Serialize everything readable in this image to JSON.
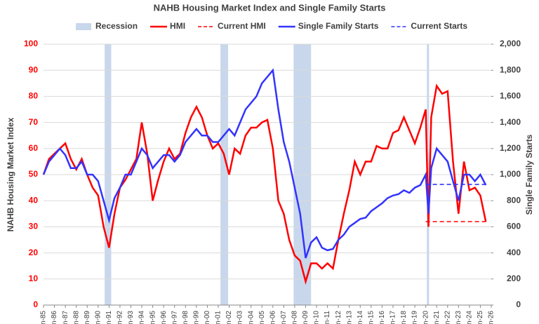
{
  "chart_data": {
    "type": "line",
    "title": "NAHB Housing Market Index and Single Family Starts",
    "ylabel": "NAHB Housing Market Index",
    "y2label": "Single Family Starts",
    "xlim": [
      1985,
      2026
    ],
    "xticks": [
      {
        "value": 1985,
        "label": "n-85"
      },
      {
        "value": 1986,
        "label": "n-86"
      },
      {
        "value": 1987,
        "label": "n-87"
      },
      {
        "value": 1988,
        "label": "n-88"
      },
      {
        "value": 1989,
        "label": "n-89"
      },
      {
        "value": 1990,
        "label": "n-90"
      },
      {
        "value": 1991,
        "label": "n-91"
      },
      {
        "value": 1992,
        "label": "n-92"
      },
      {
        "value": 1993,
        "label": "n-93"
      },
      {
        "value": 1994,
        "label": "n-94"
      },
      {
        "value": 1995,
        "label": "n-95"
      },
      {
        "value": 1996,
        "label": "n-96"
      },
      {
        "value": 1997,
        "label": "n-97"
      },
      {
        "value": 1998,
        "label": "n-98"
      },
      {
        "value": 1999,
        "label": "n-99"
      },
      {
        "value": 2000,
        "label": "n-00"
      },
      {
        "value": 2001,
        "label": "n-01"
      },
      {
        "value": 2002,
        "label": "n-02"
      },
      {
        "value": 2003,
        "label": "n-03"
      },
      {
        "value": 2004,
        "label": "n-04"
      },
      {
        "value": 2005,
        "label": "n-05"
      },
      {
        "value": 2006,
        "label": "n-06"
      },
      {
        "value": 2007,
        "label": "n-07"
      },
      {
        "value": 2008,
        "label": "n-08"
      },
      {
        "value": 2009,
        "label": "n-09"
      },
      {
        "value": 2010,
        "label": "n-10"
      },
      {
        "value": 2011,
        "label": "n-11"
      },
      {
        "value": 2012,
        "label": "n-12"
      },
      {
        "value": 2013,
        "label": "n-13"
      },
      {
        "value": 2014,
        "label": "n-14"
      },
      {
        "value": 2015,
        "label": "n-15"
      },
      {
        "value": 2016,
        "label": "n-16"
      },
      {
        "value": 2017,
        "label": "n-17"
      },
      {
        "value": 2018,
        "label": "n-18"
      },
      {
        "value": 2019,
        "label": "n-19"
      },
      {
        "value": 2020,
        "label": "n-20"
      },
      {
        "value": 2021,
        "label": "n-21"
      },
      {
        "value": 2022,
        "label": "n-22"
      },
      {
        "value": 2023,
        "label": "n-23"
      },
      {
        "value": 2024,
        "label": "n-24"
      },
      {
        "value": 2025,
        "label": "n-25"
      },
      {
        "value": 2026,
        "label": "n-26"
      }
    ],
    "ylim": [
      0,
      100
    ],
    "yticks": [
      0,
      10,
      20,
      30,
      40,
      50,
      60,
      70,
      80,
      90,
      100
    ],
    "y2lim": [
      0,
      2000
    ],
    "y2ticks": [
      0,
      200,
      400,
      600,
      800,
      {
        "value": 1000,
        "label": "1,000"
      },
      {
        "value": 1200,
        "label": "1,200"
      },
      {
        "value": 1400,
        "label": "1,400"
      },
      {
        "value": 1600,
        "label": "1,600"
      },
      {
        "value": 1800,
        "label": "1,800"
      },
      {
        "value": 2000,
        "label": "2,000"
      }
    ],
    "recession": {
      "name": "Recession",
      "color": "#c9d7ec",
      "ranges": [
        [
          1990.6,
          1991.2
        ],
        [
          2001.2,
          2001.9
        ],
        [
          2007.9,
          2009.5
        ],
        [
          2020.1,
          2020.3
        ]
      ]
    },
    "x": [
      1985,
      1985.5,
      1986,
      1986.5,
      1987,
      1987.5,
      1988,
      1988.5,
      1989,
      1989.5,
      1990,
      1990.5,
      1991,
      1991.5,
      1992,
      1992.5,
      1993,
      1993.5,
      1994,
      1994.5,
      1995,
      1995.5,
      1996,
      1996.5,
      1997,
      1997.5,
      1998,
      1998.5,
      1999,
      1999.5,
      2000,
      2000.5,
      2001,
      2001.5,
      2002,
      2002.5,
      2003,
      2003.5,
      2004,
      2004.5,
      2005,
      2005.5,
      2006,
      2006.5,
      2007,
      2007.5,
      2008,
      2008.5,
      2009,
      2009.5,
      2010,
      2010.5,
      2011,
      2011.5,
      2012,
      2012.5,
      2013,
      2013.5,
      2014,
      2014.5,
      2015,
      2015.5,
      2016,
      2016.5,
      2017,
      2017.5,
      2018,
      2018.5,
      2019,
      2019.5,
      2020,
      2020.25,
      2020.5,
      2021,
      2021.5,
      2022,
      2022.5,
      2023,
      2023.5,
      2024,
      2024.5,
      2025,
      2025.5
    ],
    "series": [
      {
        "name": "HMI",
        "color": "#ff0000",
        "dash": false,
        "values": [
          50,
          56,
          58,
          60,
          62,
          56,
          52,
          56,
          50,
          45,
          42,
          30,
          22,
          35,
          45,
          48,
          52,
          56,
          70,
          58,
          40,
          48,
          55,
          60,
          56,
          58,
          66,
          72,
          76,
          72,
          65,
          60,
          62,
          58,
          50,
          60,
          58,
          65,
          68,
          68,
          70,
          71,
          60,
          40,
          35,
          25,
          19,
          17,
          9,
          16,
          16,
          14,
          16,
          14,
          25,
          35,
          44,
          55,
          50,
          55,
          55,
          61,
          60,
          60,
          66,
          67,
          72,
          67,
          62,
          68,
          75,
          30,
          72,
          84,
          81,
          82,
          55,
          35,
          55,
          44,
          45,
          42,
          32
        ]
      },
      {
        "name": "Current HMI",
        "color": "#ff0000",
        "dash": true,
        "x": [
          2020,
          2025.7
        ],
        "values": [
          32,
          32
        ]
      },
      {
        "name": "Single Family Starts",
        "color": "#3333ff",
        "dash": false,
        "axis": "y2",
        "values": [
          1000,
          1100,
          1150,
          1200,
          1150,
          1050,
          1050,
          1100,
          1000,
          1000,
          950,
          800,
          650,
          820,
          900,
          1000,
          1000,
          1100,
          1200,
          1150,
          1050,
          1100,
          1150,
          1150,
          1100,
          1150,
          1250,
          1300,
          1350,
          1300,
          1300,
          1250,
          1250,
          1300,
          1350,
          1300,
          1400,
          1500,
          1550,
          1600,
          1700,
          1750,
          1800,
          1500,
          1250,
          1100,
          900,
          700,
          360,
          480,
          520,
          440,
          420,
          430,
          500,
          540,
          600,
          630,
          660,
          670,
          720,
          750,
          780,
          820,
          840,
          850,
          880,
          860,
          900,
          920,
          1000,
          700,
          1050,
          1200,
          1150,
          1100,
          950,
          800,
          1000,
          1000,
          950,
          1000,
          920
        ]
      },
      {
        "name": "Current Starts",
        "color": "#3333ff",
        "dash": true,
        "axis": "y2",
        "x": [
          2020,
          2025.7
        ],
        "values": [
          925,
          925
        ]
      }
    ]
  }
}
